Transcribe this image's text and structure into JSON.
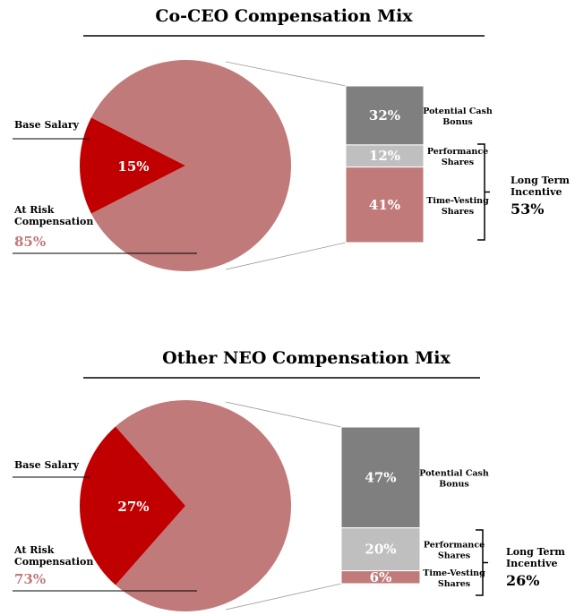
{
  "colors": {
    "base_salary": "#c00000",
    "at_risk": "#c07a7a",
    "potential_cash_bonus": "#7f7f7f",
    "performance_shares": "#bfbfbf",
    "time_vesting_shares": "#c07a7a",
    "risk_pct_text": "#c07a7a"
  },
  "chart_data": [
    {
      "type": "pie",
      "title": "Co-CEO Compensation Mix",
      "slices": [
        {
          "name": "Base Salary",
          "value": 15,
          "label": "15%"
        },
        {
          "name": "At Risk Compensation",
          "value": 85,
          "label": "85%"
        }
      ],
      "at_risk_label": "At Risk",
      "at_risk_label2": "Compensation",
      "base_salary_label": "Base Salary",
      "breakdown": [
        {
          "name": "Potential Cash Bonus",
          "line1": "Potential Cash",
          "line2": "Bonus",
          "value": 32,
          "label": "32%"
        },
        {
          "name": "Performance Shares",
          "line1": "Performance",
          "line2": "Shares",
          "value": 12,
          "label": "12%"
        },
        {
          "name": "Time-Vesting Shares",
          "line1": "Time-Vesting",
          "line2": "Shares",
          "value": 41,
          "label": "41%"
        }
      ],
      "lti": {
        "line1": "Long Term",
        "line2": "Incentive",
        "value_label": "53%"
      }
    },
    {
      "type": "pie",
      "title": "Other NEO Compensation Mix",
      "slices": [
        {
          "name": "Base Salary",
          "value": 27,
          "label": "27%"
        },
        {
          "name": "At Risk Compensation",
          "value": 73,
          "label": "73%"
        }
      ],
      "at_risk_label": "At Risk",
      "at_risk_label2": "Compensation",
      "base_salary_label": "Base Salary",
      "breakdown": [
        {
          "name": "Potential Cash Bonus",
          "line1": "Potential Cash",
          "line2": "Bonus",
          "value": 47,
          "label": "47%"
        },
        {
          "name": "Performance Shares",
          "line1": "Performance",
          "line2": "Shares",
          "value": 20,
          "label": "20%"
        },
        {
          "name": "Time-Vesting Shares",
          "line1": "Time-Vesting",
          "line2": "Shares",
          "value": 6,
          "label": "6%"
        }
      ],
      "lti": {
        "line1": "Long Term",
        "line2": "Incentive",
        "value_label": "26%"
      }
    }
  ]
}
